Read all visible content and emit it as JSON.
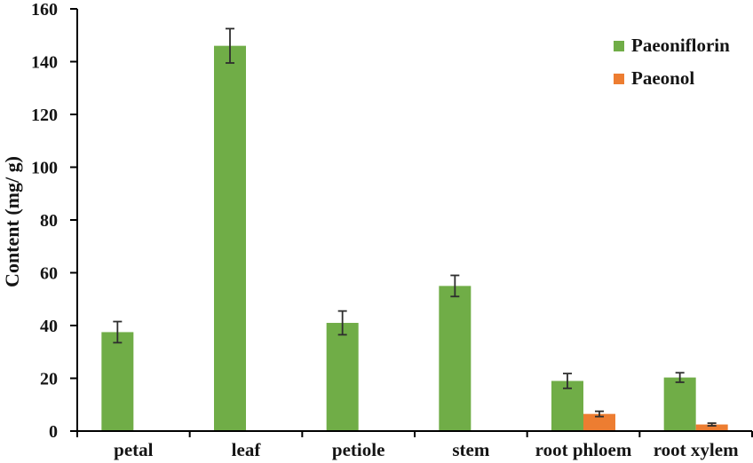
{
  "legend": {
    "items": [
      {
        "label": "Paeoniflorin",
        "color": "#70AD47"
      },
      {
        "label": "Paeonol",
        "color": "#ED7D31"
      }
    ]
  },
  "chart_data": {
    "type": "bar",
    "title": "",
    "xlabel": "",
    "ylabel": "Content (mg/ g)",
    "ylim": [
      0,
      160
    ],
    "ytick_step": 20,
    "grid": false,
    "legend_position": "top-right",
    "error_bars": true,
    "categories": [
      "petal",
      "leaf",
      "petiole",
      "stem",
      "root phloem",
      "root xylem"
    ],
    "series": [
      {
        "name": "Paeoniflorin",
        "color": "#70AD47",
        "values": [
          37.5,
          146,
          41,
          55,
          19,
          20.3
        ],
        "errors": [
          4,
          6.5,
          4.5,
          4,
          2.8,
          1.8
        ]
      },
      {
        "name": "Paeonol",
        "color": "#ED7D31",
        "values": [
          0,
          0,
          0,
          0,
          6.5,
          2.5
        ],
        "errors": [
          0,
          0,
          0,
          0,
          1,
          0.5
        ]
      }
    ]
  }
}
